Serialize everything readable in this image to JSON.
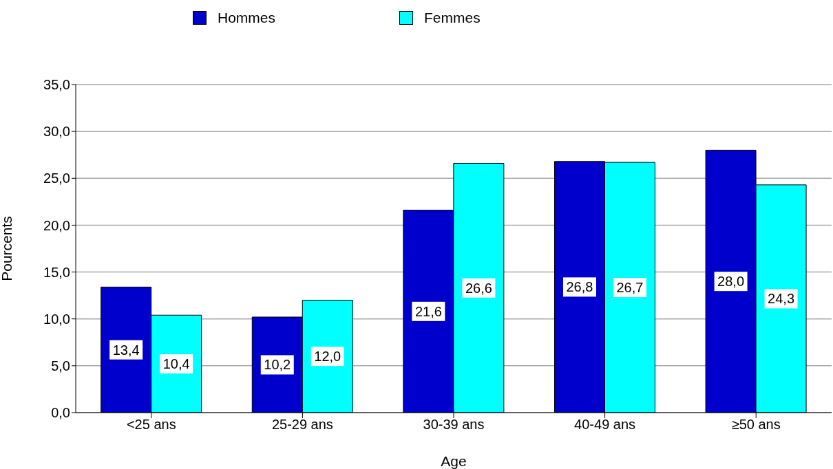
{
  "chart_data": {
    "type": "bar",
    "xlabel": "Age",
    "ylabel": "Pourcents",
    "categories": [
      "<25 ans",
      "25-29 ans",
      "30-39 ans",
      "40-49 ans",
      "≥50 ans"
    ],
    "series": [
      {
        "name": "Hommes",
        "color": "#0000cc",
        "values": [
          13.4,
          10.2,
          21.6,
          26.8,
          28.0
        ],
        "value_labels": [
          "13,4",
          "10,2",
          "21,6",
          "26,8",
          "28,0"
        ]
      },
      {
        "name": "Femmes",
        "color": "#00ffff",
        "values": [
          10.4,
          12.0,
          26.6,
          26.7,
          24.3
        ],
        "value_labels": [
          "10,4",
          "12,0",
          "26,6",
          "26,7",
          "24,3"
        ]
      }
    ],
    "ylim": [
      0,
      35
    ],
    "yticks": [
      {
        "value": 0,
        "label": "0,0"
      },
      {
        "value": 5,
        "label": "5,0"
      },
      {
        "value": 10,
        "label": "10,0"
      },
      {
        "value": 15,
        "label": "15,0"
      },
      {
        "value": 20,
        "label": "20,0"
      },
      {
        "value": 25,
        "label": "25,0"
      },
      {
        "value": 30,
        "label": "30,0"
      },
      {
        "value": 35,
        "label": "35,0"
      }
    ],
    "grid": "y",
    "legend": "top"
  }
}
